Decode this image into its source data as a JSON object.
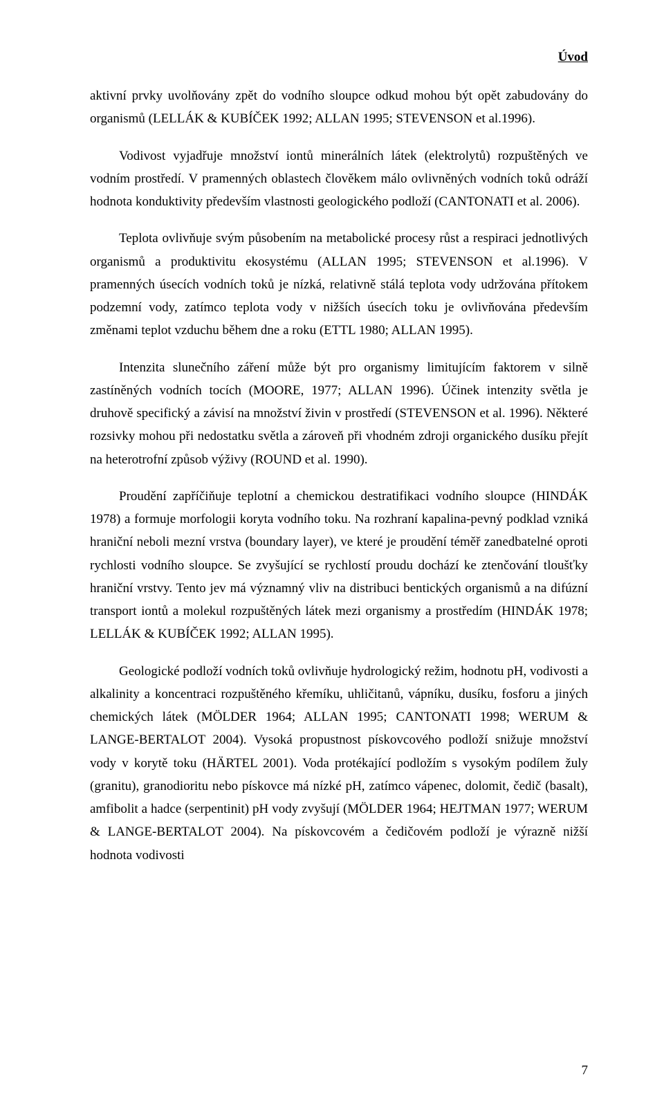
{
  "header": "Úvod",
  "paragraphs": {
    "p1": "aktivní prvky uvolňovány zpět do vodního sloupce odkud mohou být opět zabudovány do organismů (LELLÁK & KUBÍČEK 1992; ALLAN 1995; STEVENSON et al.1996).",
    "p2": "Vodivost vyjadřuje množství iontů minerálních látek (elektrolytů) rozpuštěných ve vodním prostředí. V pramenných oblastech člověkem málo ovlivněných vodních toků odráží hodnota konduktivity především vlastnosti geologického podloží (CANTONATI et al. 2006).",
    "p3": "Teplota ovlivňuje svým působením na metabolické procesy růst a respiraci jednotlivých organismů a produktivitu ekosystému (ALLAN 1995; STEVENSON et al.1996). V pramenných úsecích vodních toků je nízká, relativně stálá teplota vody udržována přítokem podzemní vody, zatímco teplota vody v nižších úsecích toku je ovlivňována především změnami teplot vzduchu během dne a roku (ETTL 1980; ALLAN 1995).",
    "p4": "Intenzita slunečního záření může být pro organismy limitujícím faktorem v silně zastíněných vodních tocích (MOORE, 1977; ALLAN 1996). Účinek intenzity světla je druhově specifický a závisí na množství živin v prostředí (STEVENSON et al. 1996). Některé rozsivky mohou při nedostatku světla a zároveň při vhodném zdroji organického dusíku přejít na heterotrofní způsob výživy (ROUND et al. 1990).",
    "p5": "Proudění zapříčiňuje teplotní a chemickou destratifikaci vodního sloupce (HINDÁK 1978) a formuje morfologii koryta vodního toku. Na rozhraní kapalina-pevný podklad vzniká hraniční neboli mezní vrstva (boundary layer), ve které je proudění téměř zanedbatelné oproti rychlosti vodního sloupce. Se zvyšující se rychlostí proudu dochází ke ztenčování tloušťky hraniční vrstvy. Tento jev má významný vliv na distribuci bentických organismů a na difúzní transport iontů a molekul rozpuštěných látek mezi organismy a prostředím (HINDÁK 1978; LELLÁK & KUBÍČEK 1992; ALLAN 1995).",
    "p6": "Geologické podloží vodních toků ovlivňuje hydrologický režim, hodnotu pH, vodivosti a alkalinity a koncentraci rozpuštěného křemíku, uhličitanů, vápníku, dusíku, fosforu a jiných chemických látek (MÖLDER 1964; ALLAN 1995; CANTONATI 1998; WERUM & LANGE-BERTALOT 2004). Vysoká propustnost pískovcového podloží snižuje množství vody v korytě toku (HÄRTEL 2001). Voda protékající podložím s vysokým podílem žuly (granitu), granodioritu nebo pískovce má nízké pH, zatímco vápenec, dolomit, čedič (basalt), amfibolit a hadce (serpentinit) pH vody zvyšují (MÖLDER 1964; HEJTMAN 1977; WERUM & LANGE-BERTALOT 2004). Na pískovcovém a čedičovém podloží je výrazně nižší hodnota vodivosti"
  },
  "pageNumber": "7"
}
